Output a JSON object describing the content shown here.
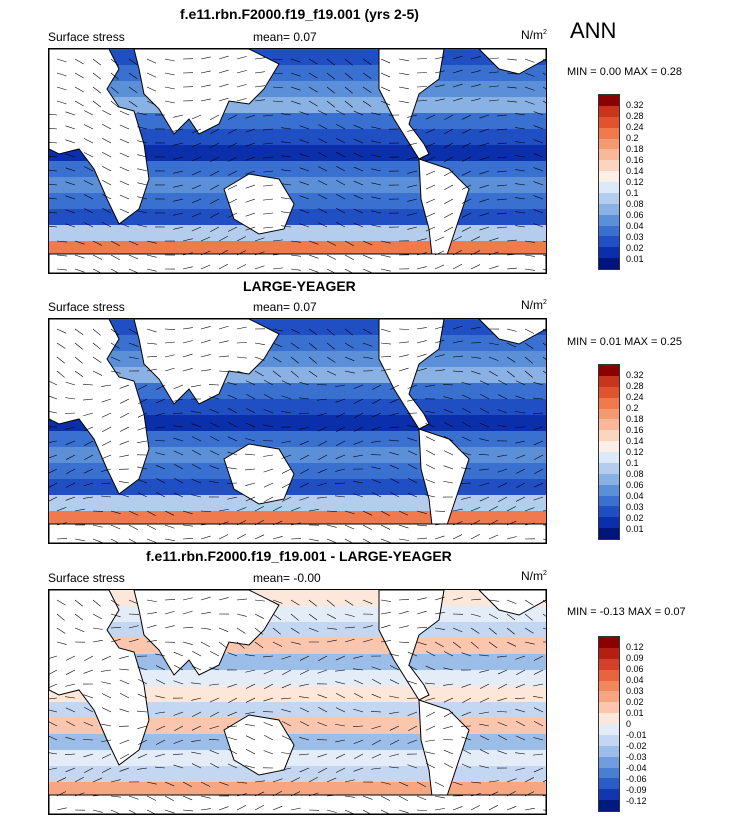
{
  "season": "ANN",
  "colors": {
    "land": "#ffffff",
    "coast": "#000000"
  },
  "panels": [
    {
      "title": "f.e11.rbn.F2000.f19_f19.001 (yrs 2-5)",
      "left_label": "Surface stress",
      "mean_text": "mean=  0.07",
      "units_base": "N/m",
      "units_exp": "2",
      "minmax": "MIN =  0.00 MAX =  0.28",
      "colorbar_labels": [
        "0.32",
        "0.28",
        "0.24",
        "0.2",
        "0.18",
        "0.16",
        "0.14",
        "0.12",
        "0.1",
        "0.08",
        "0.06",
        "0.04",
        "0.03",
        "0.02",
        "0.01"
      ],
      "colorbar_colors": [
        "#8b0000",
        "#c8341c",
        "#e0532e",
        "#ee7a4e",
        "#f49a72",
        "#f9b89a",
        "#fcd5c0",
        "#fdeee6",
        "#dce9f8",
        "#b4cdef",
        "#8ab1e4",
        "#5b8fd8",
        "#3a70cf",
        "#1f4fc3",
        "#0b2eaa",
        "#00157a"
      ]
    },
    {
      "title": "LARGE-YEAGER",
      "left_label": "Surface stress",
      "mean_text": "mean=  0.07",
      "units_base": "N/m",
      "units_exp": "2",
      "minmax": "MIN =  0.01 MAX =  0.25",
      "colorbar_labels": [
        "0.32",
        "0.28",
        "0.24",
        "0.2",
        "0.18",
        "0.16",
        "0.14",
        "0.12",
        "0.1",
        "0.08",
        "0.06",
        "0.04",
        "0.03",
        "0.02",
        "0.01"
      ],
      "colorbar_colors": [
        "#8b0000",
        "#c8341c",
        "#e0532e",
        "#ee7a4e",
        "#f49a72",
        "#f9b89a",
        "#fcd5c0",
        "#fdeee6",
        "#dce9f8",
        "#b4cdef",
        "#8ab1e4",
        "#5b8fd8",
        "#3a70cf",
        "#1f4fc3",
        "#0b2eaa",
        "#00157a"
      ]
    },
    {
      "title": "f.e11.rbn.F2000.f19_f19.001 - LARGE-YEAGER",
      "left_label": "Surface stress",
      "mean_text": "mean=  -0.00",
      "units_base": "N/m",
      "units_exp": "2",
      "minmax": "MIN =  -0.13 MAX =  0.07",
      "colorbar_labels": [
        "0.12",
        "0.09",
        "0.06",
        "0.04",
        "0.03",
        "0.02",
        "0.01",
        "0",
        "-0.01",
        "-0.02",
        "-0.03",
        "-0.04",
        "-0.06",
        "-0.09",
        "-0.12"
      ],
      "colorbar_colors": [
        "#8b0000",
        "#b51f12",
        "#d5402a",
        "#e8643e",
        "#f2875e",
        "#f7a684",
        "#fbc6ae",
        "#fde6da",
        "#e4ecf8",
        "#c3d6f2",
        "#9bbde8",
        "#6f9ddd",
        "#4a7ed3",
        "#2a5cc8",
        "#1236ad",
        "#001a80"
      ]
    }
  ],
  "chart_data": [
    {
      "type": "heatmap",
      "title": "f.e11.rbn.F2000.f19_f19.001 (yrs 2-5)",
      "variable": "Surface stress",
      "units": "N/m2",
      "mean": 0.07,
      "min": 0.0,
      "max": 0.28,
      "levels": [
        0.01,
        0.02,
        0.03,
        0.04,
        0.06,
        0.08,
        0.1,
        0.12,
        0.14,
        0.16,
        0.18,
        0.2,
        0.24,
        0.28,
        0.32
      ]
    },
    {
      "type": "heatmap",
      "title": "LARGE-YEAGER",
      "variable": "Surface stress",
      "units": "N/m2",
      "mean": 0.07,
      "min": 0.01,
      "max": 0.25,
      "levels": [
        0.01,
        0.02,
        0.03,
        0.04,
        0.06,
        0.08,
        0.1,
        0.12,
        0.14,
        0.16,
        0.18,
        0.2,
        0.24,
        0.28,
        0.32
      ]
    },
    {
      "type": "heatmap",
      "title": "f.e11.rbn.F2000.f19_f19.001 - LARGE-YEAGER",
      "variable": "Surface stress",
      "units": "N/m2",
      "mean": -0.0,
      "min": -0.13,
      "max": 0.07,
      "levels": [
        -0.12,
        -0.09,
        -0.06,
        -0.04,
        -0.03,
        -0.02,
        -0.01,
        0,
        0.01,
        0.02,
        0.03,
        0.04,
        0.06,
        0.09,
        0.12
      ]
    }
  ]
}
